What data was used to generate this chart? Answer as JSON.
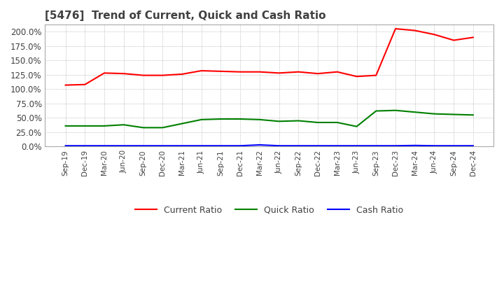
{
  "title": "[5476]  Trend of Current, Quick and Cash Ratio",
  "ylim": [
    0,
    212
  ],
  "yticks": [
    0,
    25,
    50,
    75,
    100,
    125,
    150,
    175,
    200
  ],
  "ytick_labels": [
    "0.0%",
    "25.0%",
    "50.0%",
    "75.0%",
    "100.0%",
    "125.0%",
    "150.0%",
    "175.0%",
    "200.0%"
  ],
  "x_labels": [
    "Sep-19",
    "Dec-19",
    "Mar-20",
    "Jun-20",
    "Sep-20",
    "Dec-20",
    "Mar-21",
    "Jun-21",
    "Sep-21",
    "Dec-21",
    "Mar-22",
    "Jun-22",
    "Sep-22",
    "Dec-22",
    "Mar-23",
    "Jun-23",
    "Sep-23",
    "Dec-23",
    "Mar-24",
    "Jun-24",
    "Sep-24",
    "Dec-24"
  ],
  "current_ratio": [
    107,
    108,
    128,
    127,
    124,
    124,
    126,
    132,
    131,
    130,
    130,
    128,
    130,
    127,
    130,
    122,
    124,
    205,
    202,
    195,
    185,
    190
  ],
  "quick_ratio": [
    36,
    36,
    36,
    38,
    33,
    33,
    40,
    47,
    48,
    48,
    47,
    44,
    45,
    42,
    42,
    35,
    62,
    63,
    60,
    57,
    56,
    55
  ],
  "cash_ratio": [
    1.5,
    1.5,
    1.5,
    1.5,
    1.5,
    1.5,
    1.5,
    1.5,
    1.5,
    1.5,
    3,
    1.5,
    1.5,
    1.5,
    1.5,
    1.5,
    1.5,
    1.5,
    2,
    1.5,
    1.5,
    1.5
  ],
  "current_color": "#FF0000",
  "quick_color": "#008000",
  "cash_color": "#0000FF",
  "bg_color": "#FFFFFF",
  "grid_color": "#AAAAAA",
  "title_color": "#404040",
  "tick_color": "#404040",
  "legend_labels": [
    "Current Ratio",
    "Quick Ratio",
    "Cash Ratio"
  ]
}
